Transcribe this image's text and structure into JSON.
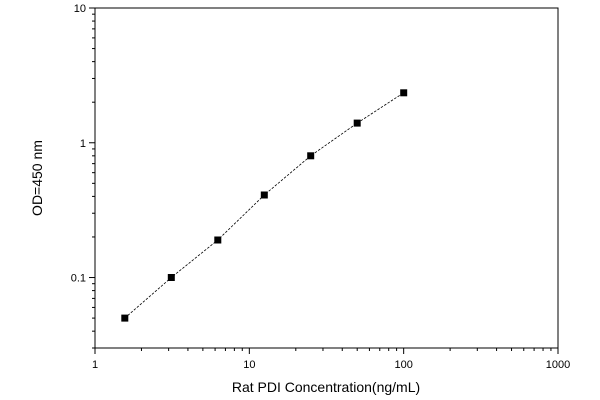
{
  "chart_data": {
    "type": "scatter",
    "title": "",
    "xlabel": "Rat PDI Concentration(ng/mL)",
    "ylabel": "OD=450 nm",
    "xscale": "log",
    "yscale": "log",
    "xlim": [
      1,
      1000
    ],
    "ylim": [
      0.03,
      10
    ],
    "x_ticks": [
      {
        "value": 1,
        "label": "1"
      },
      {
        "value": 10,
        "label": "10"
      },
      {
        "value": 100,
        "label": "100"
      },
      {
        "value": 1000,
        "label": "1000"
      }
    ],
    "y_ticks": [
      {
        "value": 0.1,
        "label": "0.1"
      },
      {
        "value": 1,
        "label": "1"
      },
      {
        "value": 10,
        "label": "10"
      }
    ],
    "grid": false,
    "legend": "none",
    "series": [
      {
        "marker": "square",
        "line": "dashed",
        "color": "#000000",
        "x": [
          1.56,
          3.12,
          6.25,
          12.5,
          25,
          50,
          100
        ],
        "y": [
          0.05,
          0.1,
          0.19,
          0.41,
          0.8,
          1.4,
          2.35
        ]
      }
    ]
  }
}
